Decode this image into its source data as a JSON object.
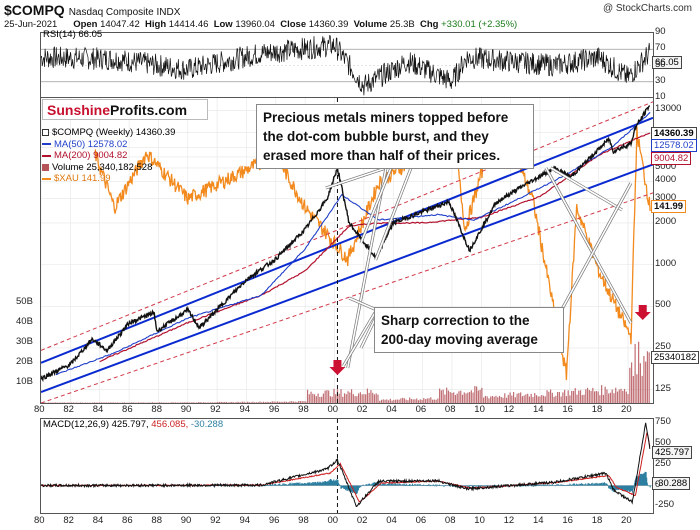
{
  "header": {
    "symbol": "$COMPQ",
    "name": "Nasdaq Composite INDX",
    "date": "25-Jun-2021",
    "open_label": "Open",
    "open": "14047.42",
    "high_label": "High",
    "high": "14414.46",
    "low_label": "Low",
    "low": "13960.04",
    "close_label": "Close",
    "close": "14360.39",
    "volume_label": "Volume",
    "volume": "25.3B",
    "chg_label": "Chg",
    "chg": "+330.01 (+2.35%)",
    "watermark": "@ StockCharts.com"
  },
  "logo": {
    "part1": "Sunshine",
    "part2": "Profits.com"
  },
  "callouts": {
    "top": "Precious metals miners topped before the dot-com bubble burst, and they erased more than half of their prices.",
    "bottom": "Sharp correction to the 200-day moving average"
  },
  "legend": {
    "main": "$COMPQ (Weekly) 14360.39",
    "ma50": "MA(50) 12578.02",
    "ma200": "MA(200) 9004.82",
    "volume": "Volume 25,340,182,528",
    "xau": "$XAU 141.99"
  },
  "colors": {
    "price": "#111111",
    "ma50": "#1f3fc9",
    "ma200": "#b3122e",
    "xau": "#f28a1e",
    "volume": "#b5555a",
    "trend": "#0a2ad0",
    "trend_dash": "#d23a4a",
    "arrow": "#cc1133",
    "rsi": "#111111",
    "macd": "#111111",
    "signal": "#cc1f1f",
    "hist": "#2d7fa0"
  },
  "rsi_panel": {
    "label": "RSI(14) 66.05",
    "value_tag": "66.05"
  },
  "macd_panel": {
    "label_main": "MACD(12,26,9) 425.797,",
    "label_signal": "456.085,",
    "label_hist": "-30.288",
    "macd_tag": "425.797",
    "hist_tag": "-30.288"
  },
  "price_tags": {
    "close": "14360.39",
    "ma50": "12578.02",
    "ma200": "9004.82",
    "xau": "141.99",
    "volume": "25340182"
  },
  "chart_data": [
    {
      "type": "line",
      "title": "RSI(14) 66.05",
      "ylim": [
        10,
        90
      ],
      "y_ticks": [
        "90",
        "70",
        "50",
        "30",
        "10"
      ],
      "x": [
        1980,
        1985,
        1990,
        1995,
        2000,
        2002,
        2005,
        2008,
        2009,
        2012,
        2015,
        2018,
        2020,
        2021.5
      ],
      "series": [
        {
          "name": "RSI(14)",
          "values": [
            60,
            58,
            45,
            65,
            75,
            25,
            55,
            30,
            60,
            55,
            50,
            60,
            35,
            66
          ]
        }
      ]
    },
    {
      "type": "line",
      "title": "$COMPQ (Weekly) 14360.39",
      "y_scale": "log",
      "ylim": [
        100,
        16000
      ],
      "y_ticks": [
        "13000",
        "9000",
        "7000",
        "6000",
        "5000",
        "4000",
        "3000",
        "2000",
        "1000",
        "500",
        "250",
        "125"
      ],
      "x_ticks": [
        "80",
        "82",
        "84",
        "86",
        "88",
        "90",
        "92",
        "94",
        "96",
        "98",
        "00",
        "02",
        "04",
        "06",
        "08",
        "10",
        "12",
        "14",
        "16",
        "18",
        "20"
      ],
      "series": [
        {
          "name": "$COMPQ",
          "x": [
            1980,
            1982,
            1983.5,
            1984.5,
            1986,
            1987.7,
            1987.9,
            1990,
            1990.8,
            1994,
            1996,
            1998,
            1999.5,
            2000.2,
            2001,
            2002.8,
            2004,
            2007.8,
            2009.2,
            2011,
            2013,
            2015,
            2016.1,
            2018.7,
            2019,
            2020.2,
            2020.5,
            2021.5
          ],
          "values": [
            150,
            190,
            290,
            240,
            380,
            450,
            330,
            470,
            350,
            780,
            1100,
            1800,
            3000,
            5000,
            2000,
            1120,
            2000,
            2850,
            1270,
            2800,
            3800,
            5000,
            4300,
            8100,
            6600,
            7500,
            9800,
            14360
          ]
        },
        {
          "name": "MA(50)",
          "x": [
            1981,
            1985,
            1990,
            1995,
            1998,
            2000.5,
            2003,
            2007,
            2009.5,
            2012,
            2016,
            2019,
            2021.5
          ],
          "values": [
            160,
            230,
            410,
            600,
            1300,
            3200,
            2100,
            2300,
            2100,
            2800,
            4600,
            7200,
            12578
          ]
        },
        {
          "name": "MA(200)",
          "x": [
            1984,
            1990,
            1995,
            1998,
            2001,
            2003,
            2006,
            2010,
            2014,
            2018,
            2021.5
          ],
          "values": [
            200,
            380,
            600,
            900,
            1900,
            2000,
            2000,
            2200,
            3100,
            6200,
            9004
          ]
        },
        {
          "name": "$XAU",
          "x": [
            1983.7,
            1985,
            1987.2,
            1990,
            1993,
            1996,
            1998,
            2000.9,
            2003,
            2006,
            2008,
            2008.9,
            2011.2,
            2013.5,
            2015.8,
            2016.5,
            2018,
            2020.2,
            2020.6,
            2021.5
          ],
          "values": [
            6300,
            2600,
            6400,
            3000,
            4300,
            6200,
            2600,
            1100,
            3900,
            6400,
            12000,
            1800,
            12500,
            3000,
            160,
            2600,
            900,
            300,
            9000,
            2600
          ]
        }
      ],
      "volume": {
        "name": "Volume",
        "ylim_b": [
          0,
          55
        ],
        "y_ticks": [
          "50B",
          "40B",
          "30B",
          "20B",
          "10B"
        ],
        "last": "25340182528"
      }
    },
    {
      "type": "line",
      "title": "MACD(12,26,9) 425.797, 456.085, -30.288",
      "y_ticks": [
        "750",
        "500",
        "250",
        "0",
        "-250"
      ],
      "ylim": [
        -330,
        800
      ],
      "series": [
        {
          "name": "MACD",
          "x": [
            1980,
            1995,
            1999.5,
            2000.2,
            2001.5,
            2003,
            2007,
            2009,
            2015,
            2018.5,
            2019,
            2020.3,
            2021.2,
            2021.5
          ],
          "values": [
            0,
            5,
            200,
            310,
            -250,
            50,
            60,
            -40,
            40,
            150,
            -50,
            -200,
            760,
            426
          ]
        },
        {
          "name": "Signal",
          "x": [
            1980,
            1995,
            1999.7,
            2000.4,
            2001.7,
            2003.2,
            2007,
            2009.2,
            2015,
            2018.7,
            2019.2,
            2020.5,
            2021.3,
            2021.5
          ],
          "values": [
            0,
            5,
            150,
            260,
            -200,
            30,
            55,
            -30,
            35,
            120,
            -20,
            -120,
            650,
            456
          ]
        }
      ]
    }
  ]
}
